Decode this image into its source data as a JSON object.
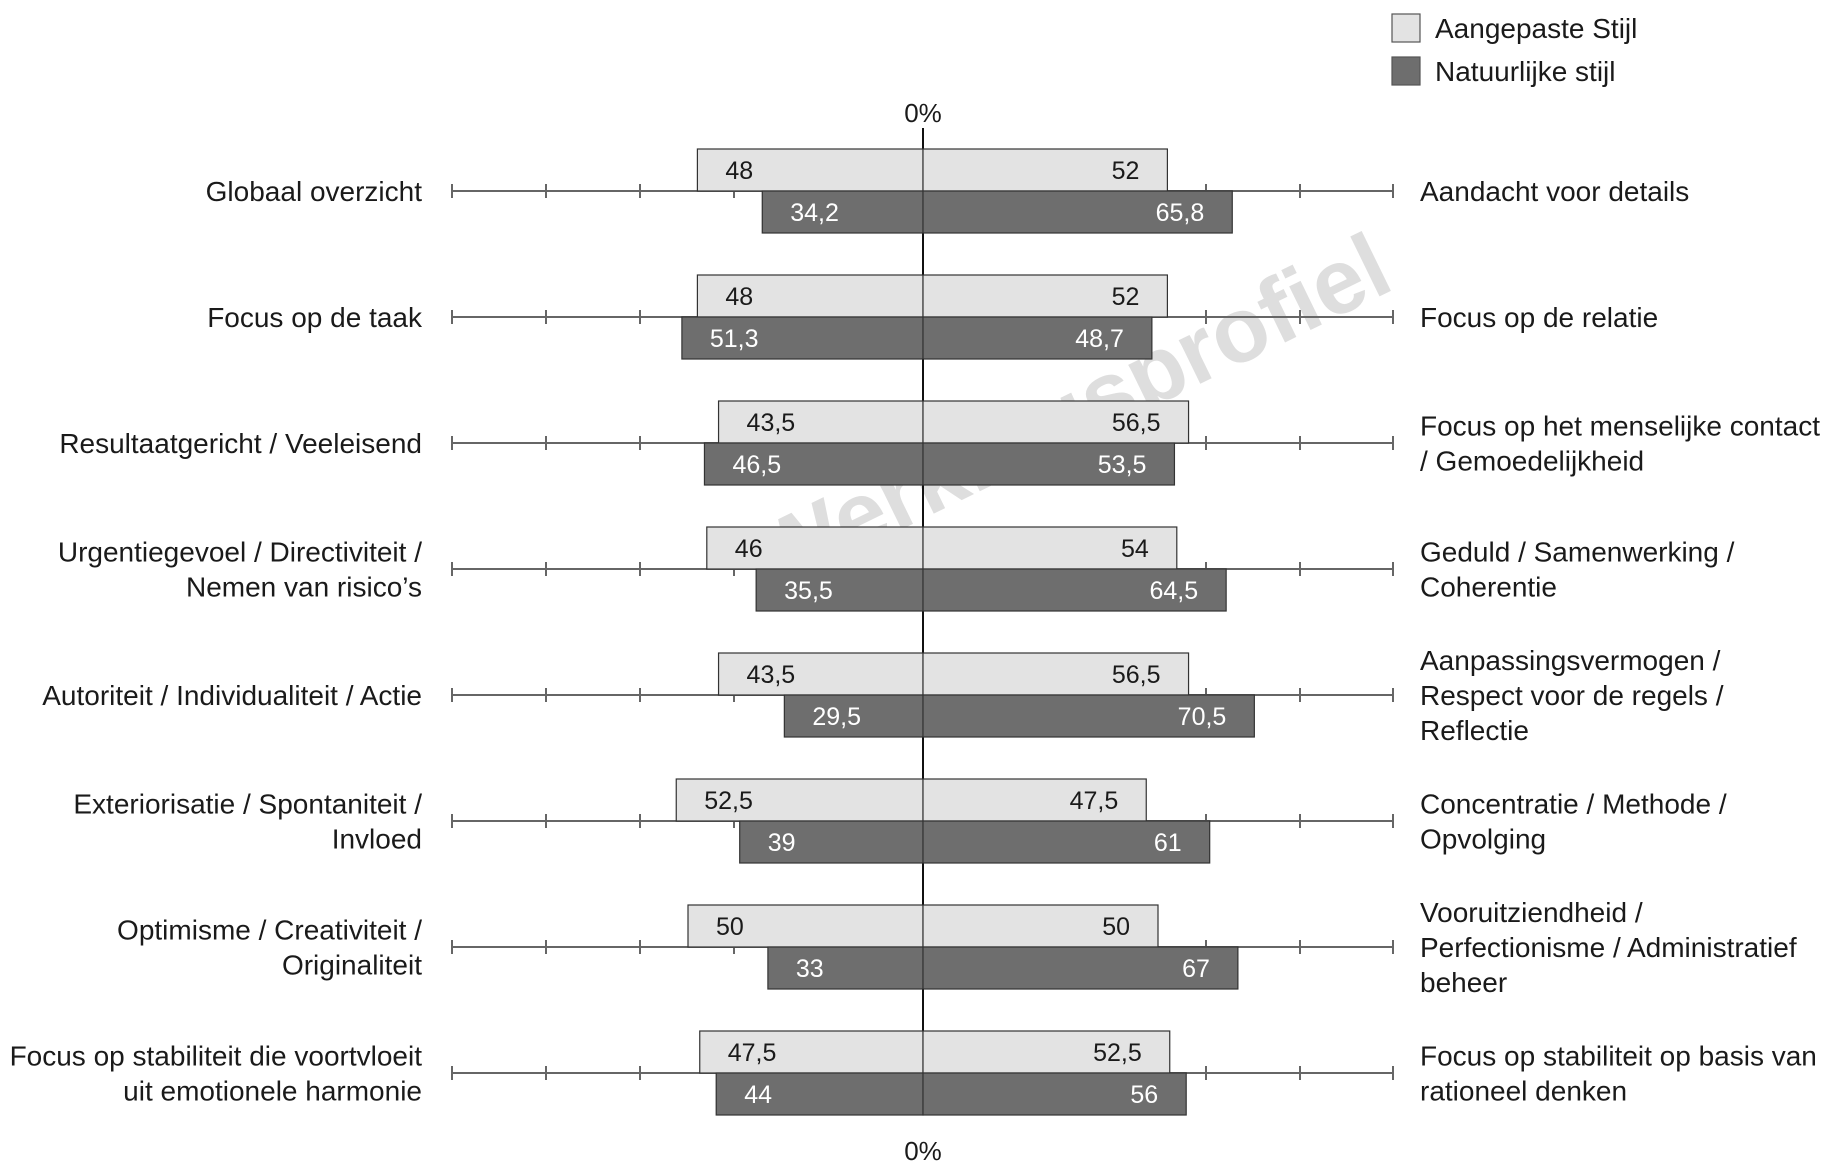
{
  "chart_data": {
    "type": "bar",
    "orientation": "horizontal-diverging",
    "watermark": "Werkingsprofiel",
    "axis_label_top": "0%",
    "axis_label_bottom": "0%",
    "xlim": [
      0,
      100
    ],
    "center": 50,
    "legend_position": "top-right",
    "series": [
      {
        "name": "Aangepaste Stijl",
        "color": "#e3e3e3",
        "text_color": "#1a1a1a"
      },
      {
        "name": "Natuurlijke stijl",
        "color": "#6e6e6e",
        "text_color": "#ffffff"
      }
    ],
    "rows": [
      {
        "left_label": [
          "Globaal overzicht"
        ],
        "right_label": [
          "Aandacht voor details"
        ],
        "aangepaste": {
          "left": "48",
          "right": "52"
        },
        "natuurlijk": {
          "left": "34,2",
          "right": "65,8"
        },
        "aangepaste_values": [
          48,
          52
        ],
        "natuurlijk_values": [
          34.2,
          65.8
        ]
      },
      {
        "left_label": [
          "Focus op de taak"
        ],
        "right_label": [
          "Focus op de relatie"
        ],
        "aangepaste": {
          "left": "48",
          "right": "52"
        },
        "natuurlijk": {
          "left": "51,3",
          "right": "48,7"
        },
        "aangepaste_values": [
          48,
          52
        ],
        "natuurlijk_values": [
          51.3,
          48.7
        ]
      },
      {
        "left_label": [
          "Resultaatgericht / Veeleisend"
        ],
        "right_label": [
          " Focus op het menselijke contact",
          "/ Gemoedelijkheid"
        ],
        "aangepaste": {
          "left": "43,5",
          "right": "56,5"
        },
        "natuurlijk": {
          "left": "46,5",
          "right": "53,5"
        },
        "aangepaste_values": [
          43.5,
          56.5
        ],
        "natuurlijk_values": [
          46.5,
          53.5
        ]
      },
      {
        "left_label": [
          "Urgentiegevoel / Directiviteit /",
          "Nemen van risico’s"
        ],
        "right_label": [
          " Geduld / Samenwerking /",
          "Coherentie"
        ],
        "aangepaste": {
          "left": "46",
          "right": "54"
        },
        "natuurlijk": {
          "left": "35,5",
          "right": "64,5"
        },
        "aangepaste_values": [
          46,
          54
        ],
        "natuurlijk_values": [
          35.5,
          64.5
        ]
      },
      {
        "left_label": [
          "Autoriteit / Individualiteit / Actie"
        ],
        "right_label": [
          " Aanpassingsvermogen /",
          "Respect voor de regels /",
          "Reflectie"
        ],
        "aangepaste": {
          "left": "43,5",
          "right": "56,5"
        },
        "natuurlijk": {
          "left": "29,5",
          "right": "70,5"
        },
        "aangepaste_values": [
          43.5,
          56.5
        ],
        "natuurlijk_values": [
          29.5,
          70.5
        ]
      },
      {
        "left_label": [
          "Exteriorisatie / Spontaniteit /",
          "Invloed"
        ],
        "right_label": [
          " Concentratie / Methode /",
          "Opvolging"
        ],
        "aangepaste": {
          "left": "52,5",
          "right": "47,5"
        },
        "natuurlijk": {
          "left": "39",
          "right": "61"
        },
        "aangepaste_values": [
          52.5,
          47.5
        ],
        "natuurlijk_values": [
          39,
          61
        ]
      },
      {
        "left_label": [
          "Optimisme / Creativiteit /",
          "Originaliteit"
        ],
        "right_label": [
          " Vooruitziendheid /",
          "Perfectionisme / Administratief",
          "beheer"
        ],
        "aangepaste": {
          "left": "50",
          "right": "50"
        },
        "natuurlijk": {
          "left": "33",
          "right": "67"
        },
        "aangepaste_values": [
          50,
          50
        ],
        "natuurlijk_values": [
          33,
          67
        ]
      },
      {
        "left_label": [
          "Focus op stabiliteit die voortvloeit",
          "uit emotionele harmonie"
        ],
        "right_label": [
          " Focus op stabiliteit op basis van",
          "rationeel denken"
        ],
        "aangepaste": {
          "left": "47,5",
          "right": "52,5"
        },
        "natuurlijk": {
          "left": "44",
          "right": "56"
        },
        "aangepaste_values": [
          47.5,
          52.5
        ],
        "natuurlijk_values": [
          44,
          56
        ]
      }
    ]
  }
}
